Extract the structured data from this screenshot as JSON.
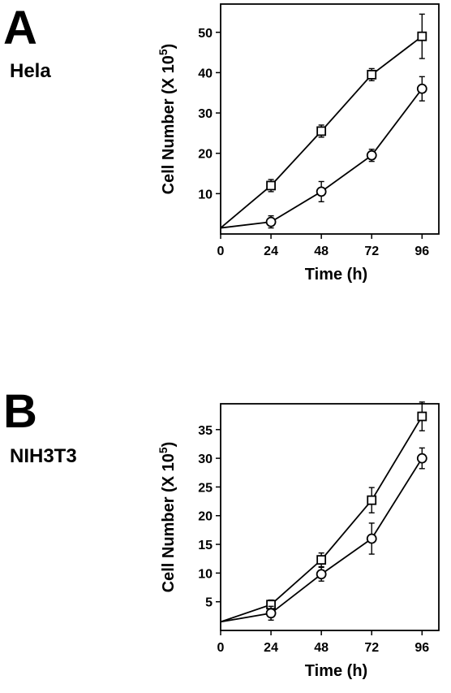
{
  "panels": [
    {
      "letter": "A",
      "cell_line": "Hela"
    },
    {
      "letter": "B",
      "cell_line": "NIH3T3"
    }
  ],
  "chart_data": [
    {
      "type": "line",
      "xlabel": "Time (h)",
      "ylabel": "Cell Number (X 10",
      "ylabel_superscript": "5",
      "ylabel_suffix": ")",
      "x": [
        0,
        24,
        48,
        72,
        96
      ],
      "xticks": [
        "0",
        "24",
        "48",
        "72",
        "96"
      ],
      "yticks": [
        "10",
        "20",
        "30",
        "40",
        "50"
      ],
      "xlim": [
        0,
        104
      ],
      "ylim": [
        0,
        57
      ],
      "grid": false,
      "series": [
        {
          "marker": "square",
          "values": [
            1.5,
            12,
            25.5,
            39.5,
            49
          ],
          "errors": [
            0,
            1.5,
            1.5,
            1.5,
            5.5
          ]
        },
        {
          "marker": "circle",
          "values": [
            1.5,
            3,
            10.5,
            19.5,
            36
          ],
          "errors": [
            0,
            1.5,
            2.5,
            1.5,
            3
          ]
        }
      ]
    },
    {
      "type": "line",
      "xlabel": "Time (h)",
      "ylabel": "Cell Number (X 10",
      "ylabel_superscript": "5",
      "ylabel_suffix": ")",
      "x": [
        0,
        24,
        48,
        72,
        96
      ],
      "xticks": [
        "0",
        "24",
        "48",
        "72",
        "96"
      ],
      "yticks": [
        "5",
        "10",
        "15",
        "20",
        "25",
        "30",
        "35"
      ],
      "xlim": [
        0,
        104
      ],
      "ylim": [
        0,
        39.5
      ],
      "grid": false,
      "series": [
        {
          "marker": "square",
          "values": [
            1.5,
            4.5,
            12.3,
            22.7,
            37.3
          ],
          "errors": [
            0,
            0.8,
            1.2,
            2.2,
            2.5
          ]
        },
        {
          "marker": "circle",
          "values": [
            1.5,
            3,
            9.8,
            16,
            30
          ],
          "errors": [
            0,
            1.2,
            1.2,
            2.7,
            1.8
          ]
        }
      ]
    }
  ]
}
